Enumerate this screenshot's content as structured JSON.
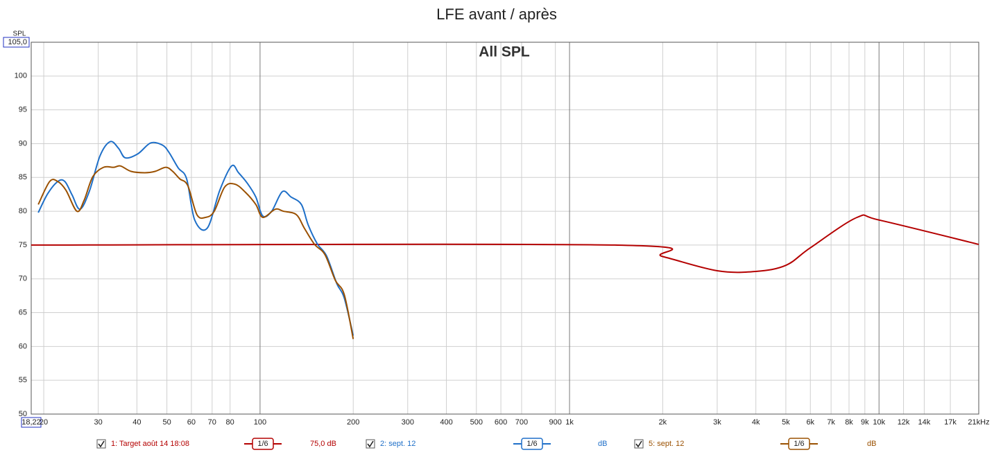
{
  "chart_data": {
    "type": "line",
    "title": "LFE avant / après",
    "subtitle": "All SPL",
    "y_label": "SPL",
    "log_x": true,
    "grid": true,
    "xlim": [
      18.22,
      21000
    ],
    "ylim": [
      50,
      105
    ],
    "xticks": [
      {
        "value": 18.22,
        "label": "18,22"
      },
      20,
      30,
      40,
      50,
      60,
      70,
      80,
      100,
      200,
      300,
      400,
      500,
      600,
      700,
      900,
      {
        "value": 1000,
        "label": "1k"
      },
      {
        "value": 2000,
        "label": "2k"
      },
      {
        "value": 3000,
        "label": "3k"
      },
      {
        "value": 4000,
        "label": "4k"
      },
      {
        "value": 5000,
        "label": "5k"
      },
      {
        "value": 6000,
        "label": "6k"
      },
      {
        "value": 7000,
        "label": "7k"
      },
      {
        "value": 8000,
        "label": "8k"
      },
      {
        "value": 9000,
        "label": "9k"
      },
      {
        "value": 10000,
        "label": "10k"
      },
      {
        "value": 12000,
        "label": "12k"
      },
      {
        "value": 14000,
        "label": "14k"
      },
      {
        "value": 17000,
        "label": "17k"
      },
      {
        "value": 21000,
        "label": "21kHz"
      }
    ],
    "yticks": [
      50,
      55,
      60,
      65,
      70,
      75,
      80,
      85,
      90,
      95,
      100,
      {
        "value": 105,
        "label": "105,0"
      }
    ],
    "series": [
      {
        "name": "1: Target août 14 18:08",
        "color": "#b40000",
        "smoothing": "1/6",
        "level": "75,0 dB",
        "x": [
          18.22,
          1400,
          2000,
          3000,
          4000,
          5000,
          6000,
          8500,
          10000,
          21000
        ],
        "values": [
          75,
          75,
          73.3,
          71.2,
          71.1,
          72,
          74.6,
          79.1,
          78.7,
          75.1
        ]
      },
      {
        "name": "2: sept. 12",
        "color": "#1e6fc8",
        "smoothing": "1/6",
        "level": "dB",
        "x": [
          19.2,
          20.6,
          22.2,
          23.4,
          24.7,
          26.2,
          28.1,
          30.4,
          32.8,
          34.9,
          36.7,
          40.3,
          44.3,
          48.3,
          50.8,
          54.4,
          57.9,
          61.5,
          67.5,
          74.1,
          80.9,
          85.2,
          91.1,
          96.9,
          102,
          109,
          118,
          126,
          136,
          143,
          153,
          164,
          177,
          187,
          200
        ],
        "values": [
          79.8,
          82.6,
          84.4,
          84.4,
          82.4,
          80.3,
          83.0,
          88.2,
          90.3,
          89.3,
          87.9,
          88.5,
          90.1,
          89.8,
          88.7,
          86.4,
          84.8,
          78.7,
          77.5,
          83.1,
          86.7,
          85.7,
          84.1,
          82.1,
          79.3,
          80.0,
          82.9,
          82.1,
          81.0,
          78.0,
          75.2,
          73.4,
          69.3,
          67.2,
          61.6
        ]
      },
      {
        "name": "5: sept. 12",
        "color": "#9a5000",
        "smoothing": "1/6",
        "level": "dB",
        "x": [
          19.2,
          20.9,
          22.2,
          23.6,
          25.6,
          27.0,
          28.8,
          31.2,
          33.7,
          35.4,
          38.3,
          42.4,
          45.8,
          49.6,
          52.2,
          55.0,
          58.4,
          62.5,
          66.8,
          71.1,
          76.9,
          83.0,
          89.7,
          96.9,
          102,
          112,
          119,
          131,
          139,
          150,
          162,
          175,
          187,
          200
        ],
        "values": [
          81.0,
          84.4,
          84.4,
          83.1,
          80.0,
          81.6,
          85.1,
          86.5,
          86.5,
          86.7,
          85.9,
          85.7,
          85.9,
          86.5,
          85.9,
          84.8,
          83.8,
          79.5,
          79.1,
          80.0,
          83.6,
          84.0,
          82.8,
          81.0,
          79.1,
          80.3,
          80.0,
          79.5,
          77.5,
          75.1,
          73.6,
          69.8,
          67.7,
          61.1
        ]
      }
    ]
  }
}
